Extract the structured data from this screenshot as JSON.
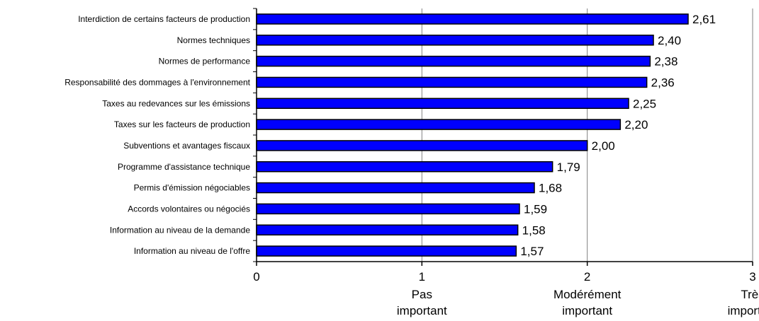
{
  "chart_data": {
    "type": "bar",
    "orientation": "horizontal",
    "categories": [
      "Interdiction de certains facteurs de production",
      "Normes techniques",
      "Normes de performance",
      "Responsabilité des dommages à l'environnement",
      "Taxes au redevances sur les émissions",
      "Taxes sur les facteurs de production",
      "Subventions et avantages fiscaux",
      "Programme d'assistance technique",
      "Permis d'émission négociables",
      "Accords volontaires ou négociés",
      "Information au niveau de la demande",
      "Information au niveau de l'offre"
    ],
    "values": [
      2.61,
      2.4,
      2.38,
      2.36,
      2.25,
      2.2,
      2.0,
      1.79,
      1.68,
      1.59,
      1.58,
      1.57
    ],
    "value_labels": [
      "2,61",
      "2,40",
      "2,38",
      "2,36",
      "2,25",
      "2,20",
      "2,00",
      "1,79",
      "1,68",
      "1,59",
      "1,58",
      "1,57"
    ],
    "xlim": [
      0,
      3
    ],
    "ticks": [
      {
        "value": 0,
        "label": "0",
        "sub": []
      },
      {
        "value": 1,
        "label": "1",
        "sub": [
          "Pas",
          "important"
        ]
      },
      {
        "value": 2,
        "label": "2",
        "sub": [
          "Modérément",
          "important"
        ]
      },
      {
        "value": 3,
        "label": "3",
        "sub": [
          "Très",
          "important"
        ]
      }
    ],
    "grid": true,
    "colors": {
      "bar_fill": "#0000ff",
      "bar_stroke": "#000000",
      "grid": "#808080",
      "axis": "#000000"
    }
  }
}
